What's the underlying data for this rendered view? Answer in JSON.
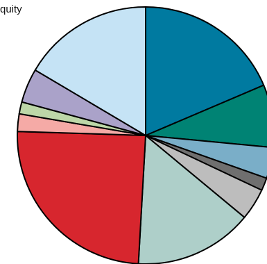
{
  "label": {
    "text": "quity"
  },
  "chart_data": {
    "type": "pie",
    "title": "",
    "start_angle_deg": 0,
    "direction": "clockwise",
    "slices": [
      {
        "value": 18.6,
        "color": "#007aa0"
      },
      {
        "value": 7.9,
        "color": "#008374"
      },
      {
        "value": 3.9,
        "color": "#7aaec8"
      },
      {
        "value": 1.6,
        "color": "#6f6f6f"
      },
      {
        "value": 4.0,
        "color": "#bdbdbd"
      },
      {
        "value": 14.9,
        "color": "#aecfc9"
      },
      {
        "value": 24.6,
        "color": "#d7262e"
      },
      {
        "value": 2.2,
        "color": "#f5aaa6"
      },
      {
        "value": 1.5,
        "color": "#bdd7a8"
      },
      {
        "value": 4.3,
        "color": "#aaa2c9"
      },
      {
        "value": 16.5,
        "color": "#c5e3f5"
      }
    ]
  }
}
